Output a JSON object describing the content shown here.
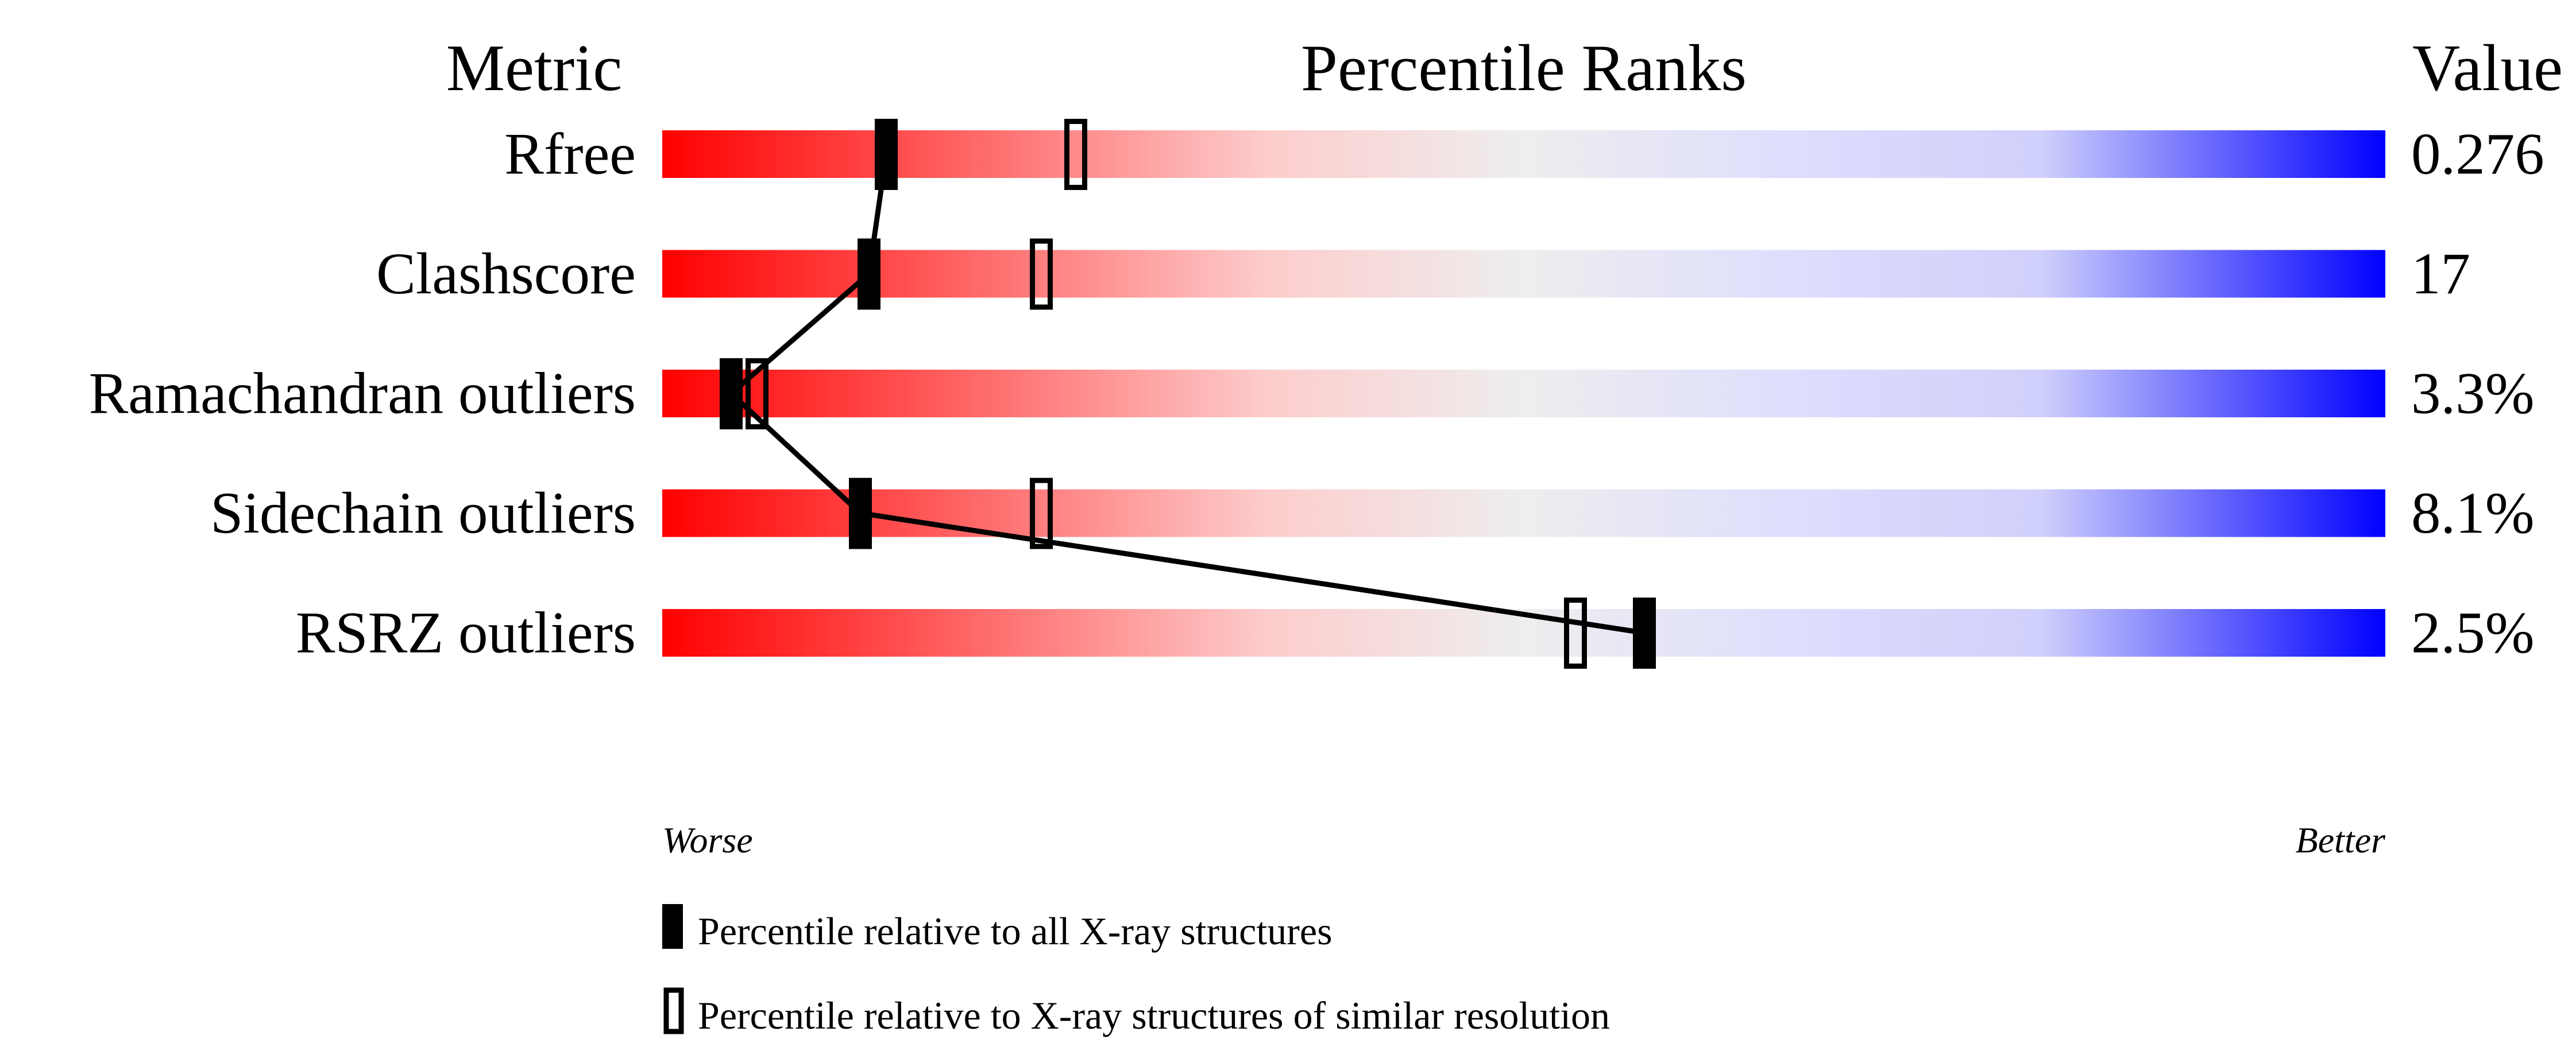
{
  "chart_data": {
    "type": "bar",
    "headers": {
      "metric": "Metric",
      "ranks": "Percentile Ranks",
      "value": "Value"
    },
    "xlim": [
      0,
      100
    ],
    "metrics": [
      {
        "name": "Rfree",
        "value": "0.276",
        "percentile_all": 13,
        "percentile_similar": 24
      },
      {
        "name": "Clashscore",
        "value": "17",
        "percentile_all": 12,
        "percentile_similar": 22
      },
      {
        "name": "Ramachandran outliers",
        "value": "3.3%",
        "percentile_all": 4,
        "percentile_similar": 5.5
      },
      {
        "name": "Sidechain outliers",
        "value": "8.1%",
        "percentile_all": 11.5,
        "percentile_similar": 22
      },
      {
        "name": "RSRZ outliers",
        "value": "2.5%",
        "percentile_all": 57,
        "percentile_similar": 53
      }
    ],
    "axis_left_label": "Worse",
    "axis_right_label": "Better",
    "legend": [
      {
        "marker": "filled",
        "label": "Percentile relative to all X-ray structures"
      },
      {
        "marker": "open",
        "label": "Percentile relative to X-ray structures of similar resolution"
      }
    ],
    "colors": {
      "worse": "#ff0000",
      "middle": "#eeeeee",
      "better": "#0000ff"
    }
  }
}
